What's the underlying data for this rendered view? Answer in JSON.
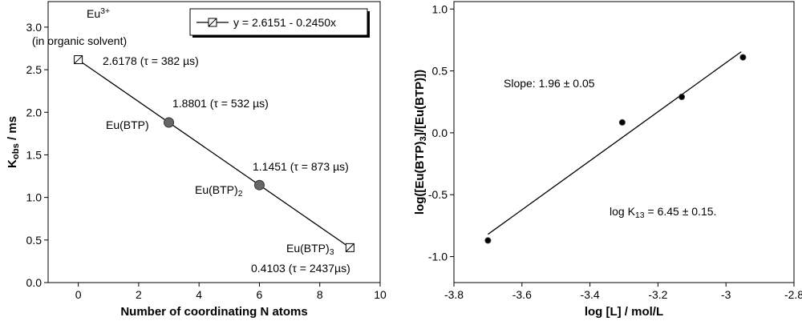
{
  "chart_data": [
    {
      "type": "scatter",
      "xlabel": "Number of coordinating N atoms",
      "ylabel": [
        {
          "t": "K"
        },
        {
          "t": "obs",
          "sub": true
        },
        {
          "t": " / ms"
        }
      ],
      "xlim": [
        -1,
        10
      ],
      "xticks": [
        0,
        2,
        4,
        6,
        8,
        10
      ],
      "ylim": [
        0,
        3.3
      ],
      "yticks": [
        {
          "value": 0,
          "label": "0.0"
        },
        0.5,
        {
          "value": 1,
          "label": "1.0"
        },
        1.5,
        {
          "value": 2,
          "label": "2.0"
        },
        2.5,
        {
          "value": 3,
          "label": "3.0"
        }
      ],
      "legend": "top-right",
      "series": [
        {
          "name": "y = 2.6151 - 0.2450x",
          "mode": "line",
          "legend_marker": "square-open",
          "color": "#000000",
          "x": [
            0,
            9
          ],
          "values": [
            2.6151,
            0.4101
          ]
        },
        {
          "mode": "markers",
          "marker": "square-open",
          "color": "#000000",
          "x": [
            0,
            9
          ],
          "values": [
            2.6178,
            0.4103
          ]
        },
        {
          "mode": "markers",
          "marker": "circle",
          "color": "#666666",
          "x": [
            3,
            6
          ],
          "values": [
            1.8801,
            1.1451
          ]
        }
      ],
      "annotations": [
        [
          {
            "t": "Eu"
          },
          {
            "t": "3+",
            "sup": true
          }
        ],
        "(in organic solvent)",
        "2.6178 (τ = 382 µs)",
        "1.8801 (τ = 532 µs)",
        "Eu(BTP)",
        "1.1451 (τ = 873 µs)",
        [
          {
            "t": "Eu(BTP)"
          },
          {
            "t": "2",
            "sub": true
          }
        ],
        [
          {
            "t": "Eu(BTP)"
          },
          {
            "t": "3",
            "sub": true
          }
        ],
        "0.4103 (τ = 2437µs)"
      ]
    },
    {
      "type": "scatter",
      "xlabel": "log [L] / mol/L",
      "ylabel": [
        {
          "t": "log([Eu(BTP)"
        },
        {
          "t": "3",
          "sub": true
        },
        {
          "t": "]/[Eu(BTP)])"
        }
      ],
      "xlim": [
        -3.8,
        -2.8
      ],
      "xticks": [
        -3.8,
        -3.6,
        -3.4,
        -3.2,
        -3.0,
        -2.8
      ],
      "ylim": [
        -1.21,
        1.06
      ],
      "yticks": [
        {
          "value": -1,
          "label": "-1.0"
        },
        -0.5,
        {
          "value": 0,
          "label": "0.0"
        },
        0.5,
        {
          "value": 1,
          "label": "1.0"
        }
      ],
      "series": [
        {
          "mode": "line",
          "color": "#000000",
          "x": [
            -3.7,
            -2.955
          ],
          "values": [
            -0.82,
            0.655
          ]
        },
        {
          "mode": "markers",
          "marker": "circle-small",
          "color": "#000000",
          "x": [
            -3.7,
            -3.305,
            -3.13,
            -2.95
          ],
          "values": [
            -0.87,
            0.084,
            0.29,
            0.61
          ]
        }
      ],
      "annotations": [
        "Slope: 1.96 ± 0.05",
        [
          {
            "t": "log K"
          },
          {
            "t": "13",
            "sub": true
          },
          {
            "t": " = 6.45 ± 0.15."
          }
        ]
      ]
    }
  ]
}
